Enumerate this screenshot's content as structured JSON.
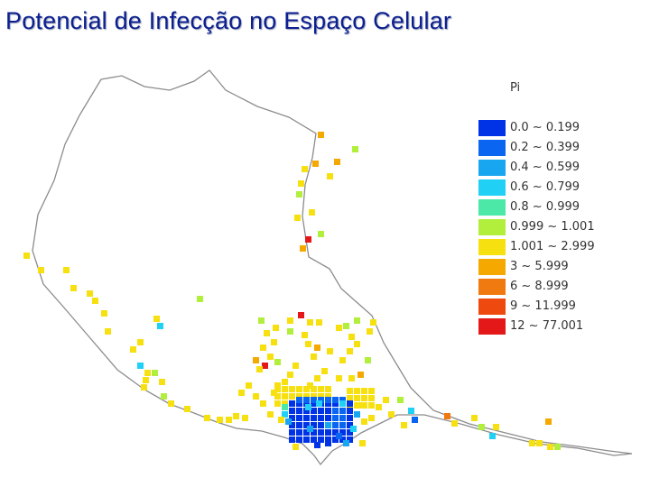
{
  "slide": {
    "title": "Potencial de Infecção no Espaço Celular"
  },
  "legend": {
    "title": "Pi",
    "items": [
      {
        "label": "0.0 ~ 0.199",
        "color": "#0033e6"
      },
      {
        "label": "0.2 ~ 0.399",
        "color": "#0a66f0"
      },
      {
        "label": "0.4 ~ 0.599",
        "color": "#18a6f0"
      },
      {
        "label": "0.6 ~ 0.799",
        "color": "#20d0f5"
      },
      {
        "label": "0.8 ~ 0.999",
        "color": "#4be8a8"
      },
      {
        "label": "0.999 ~ 1.001",
        "color": "#b2ee3c"
      },
      {
        "label": "1.001 ~ 2.999",
        "color": "#f7e010"
      },
      {
        "label": "3 ~ 5.999",
        "color": "#f5a800"
      },
      {
        "label": "6 ~ 8.999",
        "color": "#f07a10"
      },
      {
        "label": "9 ~ 11.999",
        "color": "#ee4a10"
      },
      {
        "label": "12 ~ 77.001",
        "color": "#e41818"
      }
    ]
  }
}
